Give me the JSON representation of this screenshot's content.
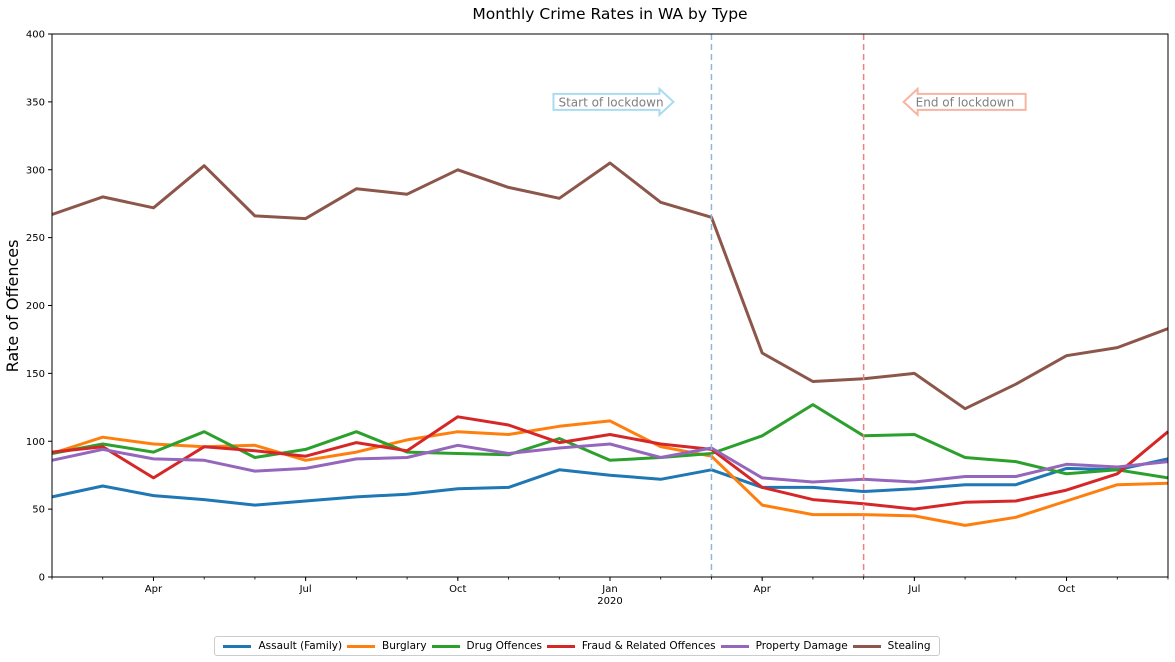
{
  "chart_data": {
    "type": "line",
    "title": "Monthly Crime Rates in WA by Type",
    "xlabel": "",
    "ylabel": "Rate of Offences",
    "ylim": [
      0,
      400
    ],
    "yticks": [
      0,
      50,
      100,
      150,
      200,
      250,
      300,
      350,
      400
    ],
    "x": [
      "2019-02",
      "2019-03",
      "2019-04",
      "2019-05",
      "2019-06",
      "2019-07",
      "2019-08",
      "2019-09",
      "2019-10",
      "2019-11",
      "2019-12",
      "2020-01",
      "2020-02",
      "2020-03",
      "2020-04",
      "2020-05",
      "2020-06",
      "2020-07",
      "2020-08",
      "2020-09",
      "2020-10",
      "2020-11",
      "2020-12"
    ],
    "xticks": [
      {
        "x": "2019-04",
        "label": "Apr",
        "sub": ""
      },
      {
        "x": "2019-07",
        "label": "Jul",
        "sub": ""
      },
      {
        "x": "2019-10",
        "label": "Oct",
        "sub": ""
      },
      {
        "x": "2020-01",
        "label": "Jan",
        "sub": "2020"
      },
      {
        "x": "2020-04",
        "label": "Apr",
        "sub": ""
      },
      {
        "x": "2020-07",
        "label": "Jul",
        "sub": ""
      },
      {
        "x": "2020-10",
        "label": "Oct",
        "sub": ""
      }
    ],
    "grid": false,
    "legend_position": "bottom-center",
    "series": [
      {
        "name": "Assault (Family)",
        "color": "#1f77b4",
        "values": [
          59,
          67,
          60,
          57,
          53,
          56,
          59,
          61,
          65,
          66,
          79,
          75,
          72,
          79,
          66,
          66,
          63,
          65,
          68,
          68,
          80,
          79,
          87
        ]
      },
      {
        "name": "Burglary",
        "color": "#ff7f0e",
        "values": [
          91,
          103,
          98,
          96,
          97,
          86,
          92,
          101,
          107,
          105,
          111,
          115,
          96,
          89,
          53,
          46,
          46,
          45,
          38,
          44,
          56,
          68,
          69
        ]
      },
      {
        "name": "Drug Offences",
        "color": "#2ca02c",
        "values": [
          91,
          98,
          92,
          107,
          88,
          94,
          107,
          92,
          91,
          90,
          102,
          86,
          88,
          91,
          104,
          127,
          104,
          105,
          88,
          85,
          76,
          79,
          73
        ]
      },
      {
        "name": "Fraud & Related Offences",
        "color": "#d62728",
        "values": [
          92,
          96,
          73,
          96,
          93,
          89,
          99,
          93,
          118,
          112,
          99,
          105,
          98,
          94,
          66,
          57,
          54,
          50,
          55,
          56,
          64,
          76,
          107
        ]
      },
      {
        "name": "Property Damage",
        "color": "#9467bd",
        "values": [
          86,
          94,
          87,
          86,
          78,
          80,
          87,
          88,
          97,
          91,
          95,
          98,
          88,
          95,
          73,
          70,
          72,
          70,
          74,
          74,
          83,
          81,
          85
        ]
      },
      {
        "name": "Stealing",
        "color": "#8c564b",
        "values": [
          267,
          280,
          272,
          303,
          266,
          264,
          286,
          282,
          300,
          287,
          279,
          305,
          276,
          265,
          165,
          144,
          146,
          150,
          124,
          142,
          163,
          169,
          183
        ]
      }
    ],
    "vlines": [
      {
        "x": "2020-03",
        "color": "#8fb6d9",
        "style": "dashed"
      },
      {
        "x": "2020-06",
        "color": "#f08080",
        "style": "dashed"
      }
    ],
    "annotations": [
      {
        "text": "Start of lockdown",
        "anchor_x": "2020-03",
        "y": 350,
        "direction": "right",
        "edge_color": "#aadbf2"
      },
      {
        "text": "End of lockdown",
        "anchor_x": "2020-06",
        "y": 350,
        "direction": "left",
        "edge_color": "#f7b4a0"
      }
    ]
  }
}
